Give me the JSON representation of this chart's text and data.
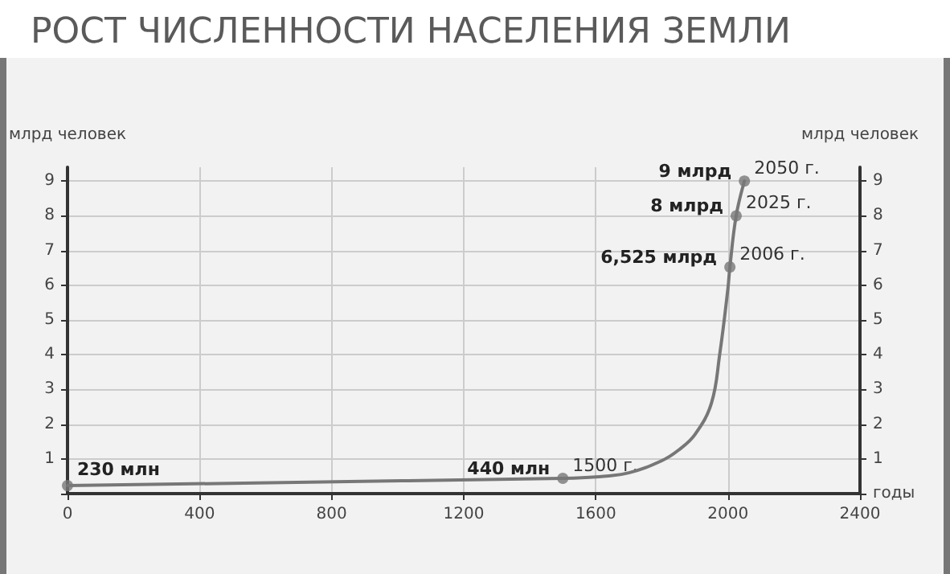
{
  "chart_data": {
    "type": "line",
    "title": "РОСТ ЧИСЛЕННОСТИ НАСЕЛЕНИЯ ЗЕМЛИ",
    "xlabel": "годы",
    "ylabel": "млрд человек",
    "y2label": "млрд человек",
    "xlim": [
      0,
      2400
    ],
    "xticks": [
      0,
      400,
      800,
      1200,
      1600,
      2000,
      2400
    ],
    "ylim": [
      0,
      9.4
    ],
    "yticks": [
      {
        "value": 0,
        "label": null
      },
      1,
      2,
      3,
      4,
      5,
      6,
      7,
      8,
      9
    ],
    "y2lim": [
      0,
      9.4
    ],
    "y2ticks": [
      {
        "value": 0,
        "label": null
      },
      1,
      2,
      3,
      4,
      5,
      6,
      7,
      8,
      9
    ],
    "grid": true,
    "marker": "none",
    "line_style": "solid",
    "series": [
      {
        "color": "#777777",
        "x": [
          0,
          1500,
          1600,
          1700,
          1800,
          1850,
          1900,
          1950,
          1975,
          2000,
          2006,
          2025,
          2050
        ],
        "values": [
          0.23,
          0.44,
          0.48,
          0.6,
          0.95,
          1.25,
          1.7,
          2.6,
          4.0,
          5.9,
          6.525,
          8,
          9
        ]
      },
      {
        "type": "scatter",
        "color": "#777777",
        "marker": "circle",
        "x": [
          0,
          1500,
          2006,
          2025,
          2050
        ],
        "values": [
          0.23,
          0.44,
          6.525,
          8,
          9
        ]
      }
    ],
    "annotations": [
      {
        "text": "230 млн",
        "x": 0,
        "y": 0.23
      },
      {
        "text": "440 млн",
        "x": 1500,
        "y": 0.44
      },
      {
        "text": "1500 г.",
        "x": 1500,
        "y": 0.44
      },
      {
        "text": "6,525 млрд",
        "x": 2006,
        "y": 6.525
      },
      {
        "text": "2006 г.",
        "x": 2006,
        "y": 6.525
      },
      {
        "text": "8 млрд",
        "x": 2025,
        "y": 8
      },
      {
        "text": "2025 г.",
        "x": 2025,
        "y": 8
      },
      {
        "text": "9 млрд",
        "x": 2050,
        "y": 9
      },
      {
        "text": "2050 г.",
        "x": 2050,
        "y": 9
      }
    ]
  }
}
